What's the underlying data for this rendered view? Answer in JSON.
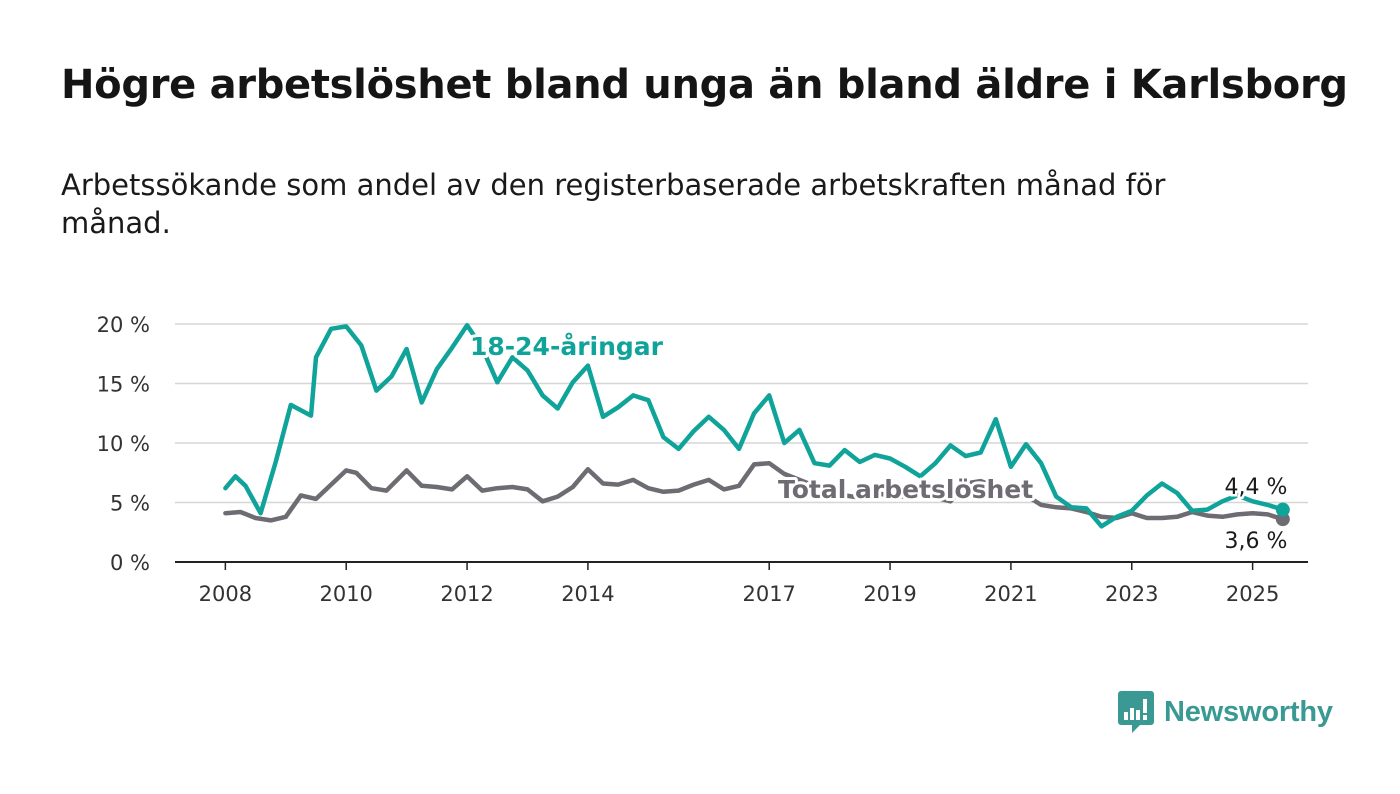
{
  "title": "Högre arbetslöshet bland unga än bland äldre i Karlsborg",
  "subtitle": "Arbetssökande som andel av den registerbaserade arbetskraften månad för månad.",
  "brand": {
    "name": "Newsworthy",
    "color": "#3a9a93",
    "icon": "bar-chart-speech-bubble-icon"
  },
  "chart_data": {
    "type": "line",
    "x_ticks": [
      "2008",
      "2010",
      "2012",
      "2014",
      "2017",
      "2019",
      "2021",
      "2023",
      "2025"
    ],
    "y_ticks": [
      {
        "value": 0,
        "label": "0 %"
      },
      {
        "value": 5,
        "label": "5 %"
      },
      {
        "value": 10,
        "label": "10 %"
      },
      {
        "value": 15,
        "label": "15 %"
      },
      {
        "value": 20,
        "label": "20 %"
      }
    ],
    "x_range": [
      "2007-03",
      "2025-12"
    ],
    "ylim": [
      0,
      20
    ],
    "grid": true,
    "series": [
      {
        "name": "Total arbetslöshet",
        "color": "#6f6b72",
        "end_label": "3,6 %",
        "points": [
          [
            "2008-01",
            4.1
          ],
          [
            "2008-04",
            4.2
          ],
          [
            "2008-07",
            3.7
          ],
          [
            "2008-10",
            3.5
          ],
          [
            "2009-01",
            3.8
          ],
          [
            "2009-04",
            5.6
          ],
          [
            "2009-07",
            5.3
          ],
          [
            "2009-10",
            6.5
          ],
          [
            "2010-01",
            7.7
          ],
          [
            "2010-03",
            7.5
          ],
          [
            "2010-06",
            6.2
          ],
          [
            "2010-09",
            6.0
          ],
          [
            "2011-01",
            7.7
          ],
          [
            "2011-04",
            6.4
          ],
          [
            "2011-07",
            6.3
          ],
          [
            "2011-10",
            6.1
          ],
          [
            "2012-01",
            7.2
          ],
          [
            "2012-04",
            6.0
          ],
          [
            "2012-07",
            6.2
          ],
          [
            "2012-10",
            6.3
          ],
          [
            "2013-01",
            6.1
          ],
          [
            "2013-04",
            5.1
          ],
          [
            "2013-07",
            5.5
          ],
          [
            "2013-10",
            6.3
          ],
          [
            "2014-01",
            7.8
          ],
          [
            "2014-04",
            6.6
          ],
          [
            "2014-07",
            6.5
          ],
          [
            "2014-10",
            6.9
          ],
          [
            "2015-01",
            6.2
          ],
          [
            "2015-04",
            5.9
          ],
          [
            "2015-07",
            6.0
          ],
          [
            "2015-10",
            6.5
          ],
          [
            "2016-01",
            6.9
          ],
          [
            "2016-04",
            6.1
          ],
          [
            "2016-07",
            6.4
          ],
          [
            "2016-10",
            8.2
          ],
          [
            "2017-01",
            8.3
          ],
          [
            "2017-04",
            7.4
          ],
          [
            "2017-07",
            6.9
          ],
          [
            "2017-10",
            6.4
          ],
          [
            "2018-01",
            6.1
          ],
          [
            "2018-04",
            5.6
          ],
          [
            "2018-07",
            5.4
          ],
          [
            "2018-10",
            5.8
          ],
          [
            "2019-01",
            5.6
          ],
          [
            "2019-04",
            5.5
          ],
          [
            "2019-07",
            5.8
          ],
          [
            "2019-10",
            5.4
          ],
          [
            "2020-01",
            5.1
          ],
          [
            "2020-04",
            6.6
          ],
          [
            "2020-07",
            6.8
          ],
          [
            "2020-10",
            6.3
          ],
          [
            "2021-01",
            6.0
          ],
          [
            "2021-04",
            5.6
          ],
          [
            "2021-07",
            4.8
          ],
          [
            "2021-10",
            4.6
          ],
          [
            "2022-01",
            4.5
          ],
          [
            "2022-04",
            4.2
          ],
          [
            "2022-07",
            3.8
          ],
          [
            "2022-10",
            3.7
          ],
          [
            "2023-01",
            4.1
          ],
          [
            "2023-04",
            3.7
          ],
          [
            "2023-07",
            3.7
          ],
          [
            "2023-10",
            3.8
          ],
          [
            "2024-01",
            4.2
          ],
          [
            "2024-04",
            3.9
          ],
          [
            "2024-07",
            3.8
          ],
          [
            "2024-10",
            4.0
          ],
          [
            "2025-01",
            4.1
          ],
          [
            "2025-04",
            4.0
          ],
          [
            "2025-07",
            3.6
          ]
        ]
      },
      {
        "name": "18-24-åringar",
        "color": "#10a39a",
        "end_label": "4,4 %",
        "points": [
          [
            "2008-01",
            6.2
          ],
          [
            "2008-03",
            7.2
          ],
          [
            "2008-05",
            6.4
          ],
          [
            "2008-08",
            4.1
          ],
          [
            "2008-11",
            8.4
          ],
          [
            "2009-02",
            13.2
          ],
          [
            "2009-06",
            12.3
          ],
          [
            "2009-07",
            17.2
          ],
          [
            "2009-10",
            19.6
          ],
          [
            "2010-01",
            19.8
          ],
          [
            "2010-04",
            18.2
          ],
          [
            "2010-07",
            14.4
          ],
          [
            "2010-10",
            15.6
          ],
          [
            "2011-01",
            17.9
          ],
          [
            "2011-04",
            13.4
          ],
          [
            "2011-07",
            16.2
          ],
          [
            "2011-10",
            18.0
          ],
          [
            "2012-01",
            19.9
          ],
          [
            "2012-04",
            18.0
          ],
          [
            "2012-07",
            15.1
          ],
          [
            "2012-10",
            17.2
          ],
          [
            "2013-01",
            16.1
          ],
          [
            "2013-04",
            14.0
          ],
          [
            "2013-07",
            12.9
          ],
          [
            "2013-10",
            15.1
          ],
          [
            "2014-01",
            16.5
          ],
          [
            "2014-04",
            12.2
          ],
          [
            "2014-07",
            13.0
          ],
          [
            "2014-10",
            14.0
          ],
          [
            "2015-01",
            13.6
          ],
          [
            "2015-04",
            10.5
          ],
          [
            "2015-07",
            9.5
          ],
          [
            "2015-10",
            11.0
          ],
          [
            "2016-01",
            12.2
          ],
          [
            "2016-04",
            11.1
          ],
          [
            "2016-07",
            9.5
          ],
          [
            "2016-10",
            12.5
          ],
          [
            "2017-01",
            14.0
          ],
          [
            "2017-04",
            10.0
          ],
          [
            "2017-07",
            11.1
          ],
          [
            "2017-10",
            8.3
          ],
          [
            "2018-01",
            8.1
          ],
          [
            "2018-04",
            9.4
          ],
          [
            "2018-07",
            8.4
          ],
          [
            "2018-10",
            9.0
          ],
          [
            "2019-01",
            8.7
          ],
          [
            "2019-04",
            8.0
          ],
          [
            "2019-07",
            7.2
          ],
          [
            "2019-10",
            8.3
          ],
          [
            "2020-01",
            9.8
          ],
          [
            "2020-04",
            8.9
          ],
          [
            "2020-07",
            9.2
          ],
          [
            "2020-10",
            12.0
          ],
          [
            "2021-01",
            8.0
          ],
          [
            "2021-04",
            9.9
          ],
          [
            "2021-07",
            8.3
          ],
          [
            "2021-10",
            5.5
          ],
          [
            "2022-01",
            4.6
          ],
          [
            "2022-04",
            4.5
          ],
          [
            "2022-07",
            3.0
          ],
          [
            "2022-10",
            3.8
          ],
          [
            "2023-01",
            4.3
          ],
          [
            "2023-04",
            5.6
          ],
          [
            "2023-07",
            6.6
          ],
          [
            "2023-10",
            5.8
          ],
          [
            "2024-01",
            4.3
          ],
          [
            "2024-04",
            4.4
          ],
          [
            "2024-07",
            5.1
          ],
          [
            "2024-10",
            5.6
          ],
          [
            "2025-01",
            5.1
          ],
          [
            "2025-04",
            4.8
          ],
          [
            "2025-07",
            4.4
          ]
        ]
      }
    ]
  }
}
